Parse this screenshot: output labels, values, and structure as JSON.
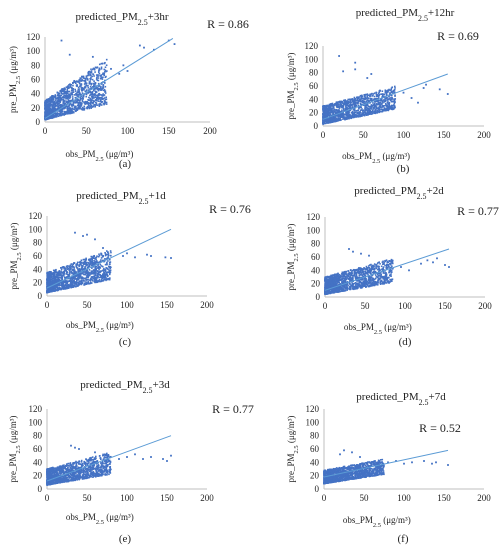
{
  "colors": {
    "points": "#4472C4",
    "trendline": "#5B9BD5",
    "axis": "#BFBFBF",
    "text": "#222222"
  },
  "chart_data": [
    {
      "type": "scatter",
      "panel_label": "(a)",
      "title_prefix": "predicted_PM",
      "title_sub": "2.5",
      "title_suffix": "+3hr",
      "r_label": "R = 0.86",
      "xlabel_prefix": "obs_PM",
      "xlabel_sub": "2.5",
      "xlabel_suffix": " (μg/m³)",
      "ylabel_prefix": "pre_PM",
      "ylabel_sub": "2.5",
      "ylabel_suffix": " (μg/m³)",
      "xlim": [
        0,
        200
      ],
      "ylim": [
        0,
        120
      ],
      "xticks": [
        0,
        50,
        100,
        150,
        200
      ],
      "yticks": [
        0,
        20,
        40,
        60,
        80,
        100,
        120
      ],
      "trendline": {
        "x": [
          0,
          155
        ],
        "y": [
          5,
          118
        ]
      },
      "cloud": {
        "x_range": [
          0,
          75
        ],
        "y_min_range": [
          3,
          25
        ],
        "y_max_range": [
          30,
          90
        ]
      },
      "outliers": [
        [
          20,
          115
        ],
        [
          30,
          95
        ],
        [
          95,
          80
        ],
        [
          115,
          108
        ],
        [
          120,
          105
        ],
        [
          132,
          102
        ],
        [
          150,
          115
        ],
        [
          157,
          110
        ],
        [
          58,
          92
        ],
        [
          80,
          75
        ],
        [
          90,
          68
        ],
        [
          100,
          72
        ]
      ]
    },
    {
      "type": "scatter",
      "panel_label": "(b)",
      "title_prefix": "predicted_PM",
      "title_sub": "2.5",
      "title_suffix": "+12hr",
      "r_label": "R = 0.69",
      "xlabel_prefix": "obs_PM",
      "xlabel_sub": "2.5",
      "xlabel_suffix": " (μg/m³)",
      "ylabel_prefix": "pre_PM",
      "ylabel_sub": "2.5",
      "ylabel_suffix": " (μg/m³)",
      "xlim": [
        0,
        200
      ],
      "ylim": [
        0,
        120
      ],
      "xticks": [
        0,
        50,
        100,
        150,
        200
      ],
      "yticks": [
        0,
        20,
        40,
        60,
        80,
        100,
        120
      ],
      "trendline": {
        "x": [
          0,
          155
        ],
        "y": [
          10,
          78
        ]
      },
      "cloud": {
        "x_range": [
          0,
          90
        ],
        "y_min_range": [
          3,
          25
        ],
        "y_max_range": [
          30,
          60
        ]
      },
      "outliers": [
        [
          20,
          105
        ],
        [
          25,
          82
        ],
        [
          40,
          85
        ],
        [
          55,
          72
        ],
        [
          60,
          78
        ],
        [
          85,
          52
        ],
        [
          100,
          50
        ],
        [
          110,
          42
        ],
        [
          118,
          35
        ],
        [
          125,
          57
        ],
        [
          128,
          62
        ],
        [
          145,
          55
        ],
        [
          155,
          48
        ],
        [
          40,
          95
        ]
      ]
    },
    {
      "type": "scatter",
      "panel_label": "(c)",
      "title_prefix": "predicted_PM",
      "title_sub": "2.5",
      "title_suffix": "+1d",
      "r_label": "R = 0.76",
      "xlabel_prefix": "obs_PM",
      "xlabel_sub": "2.5",
      "xlabel_suffix": " (μg/m³)",
      "ylabel_prefix": "pre_PM",
      "ylabel_sub": "2.5",
      "ylabel_suffix": " (μg/m³)",
      "xlim": [
        0,
        200
      ],
      "ylim": [
        0,
        120
      ],
      "xticks": [
        0,
        50,
        100,
        150,
        200
      ],
      "yticks": [
        0,
        20,
        40,
        60,
        80,
        100,
        120
      ],
      "trendline": {
        "x": [
          0,
          155
        ],
        "y": [
          12,
          100
        ]
      },
      "cloud": {
        "x_range": [
          0,
          80
        ],
        "y_min_range": [
          5,
          25
        ],
        "y_max_range": [
          35,
          70
        ]
      },
      "outliers": [
        [
          35,
          95
        ],
        [
          45,
          90
        ],
        [
          50,
          92
        ],
        [
          60,
          85
        ],
        [
          70,
          72
        ],
        [
          95,
          60
        ],
        [
          100,
          64
        ],
        [
          110,
          58
        ],
        [
          125,
          62
        ],
        [
          130,
          60
        ],
        [
          148,
          58
        ],
        [
          155,
          57
        ]
      ]
    },
    {
      "type": "scatter",
      "panel_label": "(d)",
      "title_prefix": "predicted_PM",
      "title_sub": "2.5",
      "title_suffix": "+2d",
      "r_label": "R = 0.77",
      "xlabel_prefix": "obs_PM",
      "xlabel_sub": "2.5",
      "xlabel_suffix": " (μg/m³)",
      "ylabel_prefix": "pre_PM",
      "ylabel_sub": "2.5",
      "ylabel_suffix": " (μg/m³)",
      "xlim": [
        0,
        200
      ],
      "ylim": [
        0,
        120
      ],
      "xticks": [
        0,
        50,
        100,
        150,
        200
      ],
      "yticks": [
        0,
        20,
        40,
        60,
        80,
        100,
        120
      ],
      "trendline": {
        "x": [
          0,
          155
        ],
        "y": [
          10,
          72
        ]
      },
      "cloud": {
        "x_range": [
          0,
          85
        ],
        "y_min_range": [
          4,
          22
        ],
        "y_max_range": [
          30,
          58
        ]
      },
      "outliers": [
        [
          30,
          72
        ],
        [
          35,
          68
        ],
        [
          45,
          65
        ],
        [
          55,
          62
        ],
        [
          95,
          45
        ],
        [
          105,
          40
        ],
        [
          120,
          50
        ],
        [
          128,
          55
        ],
        [
          135,
          52
        ],
        [
          140,
          58
        ],
        [
          150,
          48
        ],
        [
          155,
          45
        ]
      ]
    },
    {
      "type": "scatter",
      "panel_label": "(e)",
      "title_prefix": "predicted_PM",
      "title_sub": "2.5",
      "title_suffix": "+3d",
      "r_label": "R = 0.77",
      "xlabel_prefix": "obs_PM",
      "xlabel_sub": "2.5",
      "xlabel_suffix": " (μg/m³)",
      "ylabel_prefix": "pre_PM",
      "ylabel_sub": "2.5",
      "ylabel_suffix": " (μg/m³)",
      "xlim": [
        0,
        200
      ],
      "ylim": [
        0,
        120
      ],
      "xticks": [
        0,
        50,
        100,
        150,
        200
      ],
      "yticks": [
        0,
        20,
        40,
        60,
        80,
        100,
        120
      ],
      "trendline": {
        "x": [
          0,
          155
        ],
        "y": [
          12,
          80
        ]
      },
      "cloud": {
        "x_range": [
          0,
          80
        ],
        "y_min_range": [
          6,
          22
        ],
        "y_max_range": [
          30,
          55
        ]
      },
      "outliers": [
        [
          30,
          65
        ],
        [
          35,
          62
        ],
        [
          40,
          60
        ],
        [
          60,
          55
        ],
        [
          90,
          45
        ],
        [
          100,
          48
        ],
        [
          110,
          52
        ],
        [
          120,
          45
        ],
        [
          130,
          48
        ],
        [
          145,
          45
        ],
        [
          155,
          50
        ],
        [
          150,
          42
        ]
      ]
    },
    {
      "type": "scatter",
      "panel_label": "(f)",
      "title_prefix": "predicted_PM",
      "title_sub": "2.5",
      "title_suffix": "+7d",
      "r_label": "R = 0.52",
      "xlabel_prefix": "obs_PM",
      "xlabel_sub": "2.5",
      "xlabel_suffix": " (μg/m³)",
      "ylabel_prefix": "pre_PM",
      "ylabel_sub": "2.5",
      "ylabel_suffix": " (μg/m³)",
      "xlim": [
        0,
        200
      ],
      "ylim": [
        0,
        120
      ],
      "xticks": [
        0,
        50,
        100,
        150,
        200
      ],
      "yticks": [
        0,
        20,
        40,
        60,
        80,
        100,
        120
      ],
      "trendline": {
        "x": [
          0,
          155
        ],
        "y": [
          18,
          58
        ]
      },
      "cloud": {
        "x_range": [
          0,
          75
        ],
        "y_min_range": [
          8,
          22
        ],
        "y_max_range": [
          28,
          45
        ]
      },
      "outliers": [
        [
          20,
          52
        ],
        [
          25,
          58
        ],
        [
          35,
          55
        ],
        [
          45,
          48
        ],
        [
          80,
          40
        ],
        [
          90,
          42
        ],
        [
          100,
          38
        ],
        [
          110,
          40
        ],
        [
          125,
          42
        ],
        [
          135,
          38
        ],
        [
          140,
          40
        ],
        [
          155,
          36
        ]
      ]
    }
  ]
}
